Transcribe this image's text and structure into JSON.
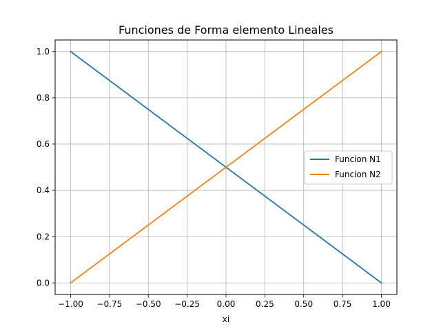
{
  "chart_data": {
    "type": "line",
    "title": "Funciones de Forma elemento Lineales",
    "xlabel": "xi",
    "ylabel": "",
    "xlim": [
      -1.1,
      1.1
    ],
    "ylim": [
      -0.05,
      1.05
    ],
    "xticks": [
      -1.0,
      -0.75,
      -0.5,
      -0.25,
      0.0,
      0.25,
      0.5,
      0.75,
      1.0
    ],
    "xtick_labels": [
      "−1.00",
      "−0.75",
      "−0.50",
      "−0.25",
      "0.00",
      "0.25",
      "0.50",
      "0.75",
      "1.00"
    ],
    "yticks": [
      0.0,
      0.2,
      0.4,
      0.6,
      0.8,
      1.0
    ],
    "ytick_labels": [
      "0.0",
      "0.2",
      "0.4",
      "0.6",
      "0.8",
      "1.0"
    ],
    "grid": true,
    "legend_position": "center-right",
    "series": [
      {
        "name": "Funcion N1",
        "color": "#1f77b4",
        "x": [
          -1.0,
          1.0
        ],
        "y": [
          1.0,
          0.0
        ]
      },
      {
        "name": "Funcion N2",
        "color": "#ff7f0e",
        "x": [
          -1.0,
          1.0
        ],
        "y": [
          0.0,
          1.0
        ]
      }
    ]
  }
}
